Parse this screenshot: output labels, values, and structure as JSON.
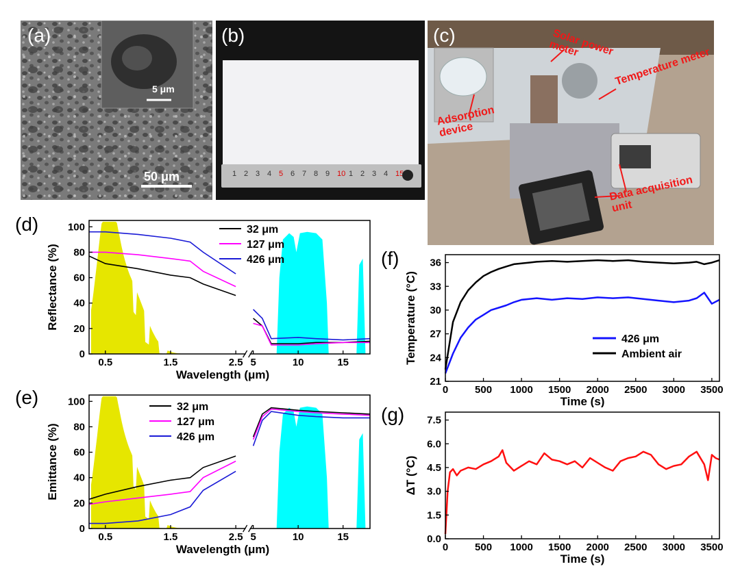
{
  "panels": {
    "a": {
      "label": "(a)",
      "inset_scale": "5 μm",
      "scale": "50 μm"
    },
    "b": {
      "label": "(b)",
      "ruler_ticks": [
        "1",
        "2",
        "3",
        "4",
        "5",
        "6",
        "7",
        "8",
        "9",
        "10",
        "1",
        "2",
        "3",
        "4",
        "15"
      ]
    },
    "c": {
      "label": "(c)",
      "annotations": {
        "solar": "Solar power meter",
        "temp": "Temperature meter",
        "adsorp": "Adsorption device",
        "daq": "Data acquisition unit"
      }
    },
    "d": {
      "label": "(d)"
    },
    "e": {
      "label": "(e)"
    },
    "f": {
      "label": "(f)"
    },
    "g": {
      "label": "(g)"
    }
  },
  "colors": {
    "s32": "#000000",
    "s127": "#ff00ff",
    "s426_de": "#1a1ad6",
    "s426_f": "#1414ff",
    "ambient": "#000000",
    "deltaT": "#ff1010",
    "solar": "#e6e600",
    "atm": "#00ffff"
  },
  "chart_data": [
    {
      "id": "d",
      "type": "line",
      "ylabel": "Reflectance (%)",
      "xlabel": "Wavelength (μm)",
      "ylim": [
        0,
        105
      ],
      "yticks": [
        "0",
        "20",
        "40",
        "60",
        "80",
        "100"
      ],
      "xticks": [
        "0.5",
        "1.5",
        "2.5",
        "5",
        "10",
        "15"
      ],
      "x_broken_axis": {
        "left": [
          0.25,
          2.6
        ],
        "right": [
          5,
          18
        ]
      },
      "series": [
        {
          "name": "32  μm",
          "x": [
            0.25,
            0.5,
            1.0,
            1.5,
            1.8,
            2.0,
            2.5,
            5.0,
            6.0,
            7.0,
            10,
            12,
            15,
            18
          ],
          "values": [
            77,
            71,
            67,
            62,
            60,
            55,
            46,
            28,
            22,
            8,
            8,
            9,
            9,
            10
          ]
        },
        {
          "name": "127 μm",
          "x": [
            0.25,
            0.5,
            1.0,
            1.5,
            1.8,
            2.0,
            2.5,
            5.0,
            6.0,
            7.0,
            10,
            12,
            15,
            18
          ],
          "values": [
            80,
            80,
            78,
            75,
            73,
            65,
            53,
            24,
            22,
            7,
            7,
            8,
            9,
            9
          ]
        },
        {
          "name": "426 μm",
          "x": [
            0.25,
            0.5,
            1.0,
            1.5,
            1.8,
            2.0,
            2.5,
            5.0,
            6.0,
            7.0,
            10,
            12,
            15,
            18
          ],
          "values": [
            96,
            96,
            94,
            91,
            88,
            80,
            63,
            35,
            28,
            12,
            13,
            12,
            11,
            12
          ]
        }
      ]
    },
    {
      "id": "e",
      "type": "line",
      "ylabel": "Emittance (%)",
      "xlabel": "Wavelength (μm)",
      "ylim": [
        0,
        105
      ],
      "yticks": [
        "0",
        "20",
        "40",
        "60",
        "80",
        "100"
      ],
      "xticks": [
        "0.5",
        "1.5",
        "2.5",
        "5",
        "10",
        "15"
      ],
      "x_broken_axis": {
        "left": [
          0.25,
          2.6
        ],
        "right": [
          5,
          18
        ]
      },
      "series": [
        {
          "name": "32  μm",
          "x": [
            0.25,
            0.5,
            1.0,
            1.5,
            1.8,
            2.0,
            2.5,
            5.0,
            6.0,
            7.0,
            10,
            12,
            15,
            18
          ],
          "values": [
            23,
            27,
            33,
            38,
            40,
            48,
            57,
            72,
            90,
            95,
            93,
            92,
            91,
            90
          ]
        },
        {
          "name": "127 μm",
          "x": [
            0.25,
            0.5,
            1.0,
            1.5,
            1.8,
            2.0,
            2.5,
            5.0,
            6.0,
            7.0,
            10,
            12,
            15,
            18
          ],
          "values": [
            19,
            21,
            24,
            27,
            29,
            40,
            53,
            70,
            88,
            94,
            92,
            91,
            90,
            89
          ]
        },
        {
          "name": "426 μm",
          "x": [
            0.25,
            0.5,
            1.0,
            1.5,
            1.8,
            2.0,
            2.5,
            5.0,
            6.0,
            7.0,
            10,
            12,
            15,
            18
          ],
          "values": [
            4,
            4,
            6,
            11,
            17,
            30,
            45,
            65,
            85,
            92,
            89,
            88,
            87,
            87
          ]
        }
      ]
    },
    {
      "id": "f",
      "type": "line",
      "ylabel": "Temperature (°C)",
      "xlabel": "Time (s)",
      "xlim": [
        0,
        3600
      ],
      "ylim": [
        21,
        37
      ],
      "yticks": [
        "21",
        "24",
        "27",
        "30",
        "33",
        "36"
      ],
      "xticks": [
        "0",
        "500",
        "1000",
        "1500",
        "2000",
        "2500",
        "3000",
        "3500"
      ],
      "series": [
        {
          "name": "426 μm",
          "x": [
            0,
            100,
            200,
            300,
            400,
            500,
            600,
            700,
            800,
            900,
            1000,
            1100,
            1200,
            1400,
            1600,
            1800,
            2000,
            2200,
            2400,
            2600,
            2800,
            3000,
            3200,
            3300,
            3400,
            3500,
            3600
          ],
          "values": [
            22,
            24.5,
            26.5,
            27.8,
            28.8,
            29.4,
            30,
            30.3,
            30.6,
            31,
            31.3,
            31.4,
            31.5,
            31.3,
            31.5,
            31.4,
            31.6,
            31.5,
            31.6,
            31.4,
            31.2,
            31,
            31.2,
            31.5,
            32.2,
            30.8,
            31.3
          ]
        },
        {
          "name": "Ambient air",
          "x": [
            0,
            100,
            200,
            300,
            400,
            500,
            600,
            700,
            800,
            900,
            1000,
            1100,
            1200,
            1400,
            1600,
            1800,
            2000,
            2200,
            2400,
            2600,
            2800,
            3000,
            3200,
            3300,
            3400,
            3500,
            3600
          ],
          "values": [
            22.5,
            28.5,
            31,
            32.5,
            33.5,
            34.3,
            34.8,
            35.2,
            35.5,
            35.8,
            35.9,
            36,
            36.1,
            36.2,
            36.1,
            36.2,
            36.3,
            36.2,
            36.3,
            36.1,
            36,
            35.9,
            36,
            36.1,
            35.8,
            36,
            36.3
          ]
        }
      ]
    },
    {
      "id": "g",
      "type": "line",
      "ylabel": "ΔT (°C)",
      "xlabel": "Time (s)",
      "xlim": [
        0,
        3600
      ],
      "ylim": [
        0,
        8
      ],
      "yticks": [
        "0.0",
        "1.5",
        "3.0",
        "4.5",
        "6.0",
        "7.5"
      ],
      "xticks": [
        "0",
        "500",
        "1000",
        "1500",
        "2000",
        "2500",
        "3000",
        "3500"
      ],
      "series": [
        {
          "name": "ΔT",
          "x": [
            0,
            30,
            60,
            100,
            150,
            200,
            300,
            400,
            500,
            600,
            700,
            750,
            800,
            900,
            1000,
            1100,
            1200,
            1300,
            1400,
            1500,
            1600,
            1700,
            1800,
            1900,
            2000,
            2100,
            2200,
            2300,
            2400,
            2500,
            2600,
            2700,
            2800,
            2900,
            3000,
            3100,
            3200,
            3300,
            3400,
            3450,
            3500,
            3550,
            3600
          ],
          "values": [
            0.3,
            3,
            4.2,
            4.4,
            4,
            4.3,
            4.5,
            4.4,
            4.7,
            4.9,
            5.2,
            5.6,
            4.8,
            4.3,
            4.6,
            4.9,
            4.7,
            5.4,
            5,
            4.9,
            4.7,
            4.9,
            4.5,
            5.1,
            4.8,
            4.5,
            4.3,
            4.9,
            5.1,
            5.2,
            5.5,
            5.3,
            4.7,
            4.4,
            4.6,
            4.7,
            5.2,
            5.5,
            4.7,
            3.7,
            5.3,
            5.1,
            5
          ]
        }
      ]
    }
  ]
}
